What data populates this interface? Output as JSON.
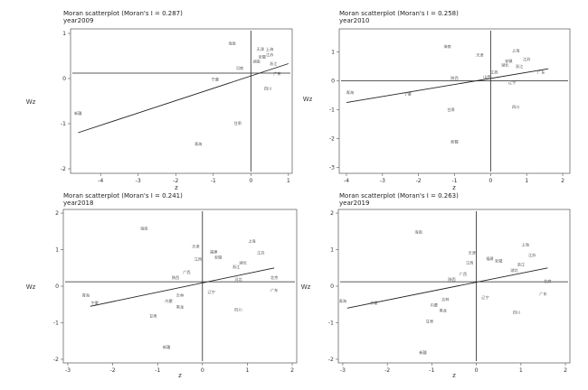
{
  "chart_data": [
    {
      "type": "scatter",
      "title": "Moran scatterplot (Moran's I = 0.287)",
      "subtitle": "year2009",
      "xlabel": "z",
      "ylabel": "Wz",
      "xlim": [
        -4.8,
        1.1
      ],
      "ylim": [
        -2.1,
        1.1
      ],
      "xticks": [
        -4,
        -3,
        -2,
        -1,
        0,
        1
      ],
      "yticks": [
        -2,
        -1,
        0,
        1
      ],
      "ref_x": 0,
      "ref_y": 0.12,
      "fit": {
        "x": [
          -4.6,
          1.0
        ],
        "y": [
          -1.2,
          0.33
        ]
      },
      "points": [
        {
          "label": "海南",
          "x": -0.5,
          "y": 0.75
        },
        {
          "label": "天津",
          "x": 0.25,
          "y": 0.62
        },
        {
          "label": "上海",
          "x": 0.5,
          "y": 0.62
        },
        {
          "label": "江苏",
          "x": 0.5,
          "y": 0.5
        },
        {
          "label": "安徽",
          "x": 0.3,
          "y": 0.45
        },
        {
          "label": "湖南",
          "x": 0.15,
          "y": 0.35
        },
        {
          "label": "浙江",
          "x": 0.6,
          "y": 0.3
        },
        {
          "label": "广东",
          "x": 0.7,
          "y": 0.08
        },
        {
          "label": "河南",
          "x": -0.3,
          "y": 0.2
        },
        {
          "label": "宁夏",
          "x": -0.95,
          "y": -0.05
        },
        {
          "label": "四川",
          "x": 0.45,
          "y": -0.25
        },
        {
          "label": "新疆",
          "x": -4.6,
          "y": -0.8
        },
        {
          "label": "甘肃",
          "x": -0.35,
          "y": -1.02
        },
        {
          "label": "青海",
          "x": -1.4,
          "y": -1.48
        }
      ]
    },
    {
      "type": "scatter",
      "title": "Moran scatterplot (Moran's I = 0.258)",
      "subtitle": "year2010",
      "xlabel": "z",
      "ylabel": "Wz",
      "xlim": [
        -4.2,
        2.2
      ],
      "ylim": [
        -3.2,
        1.8
      ],
      "xticks": [
        -4,
        -3,
        -2,
        -1,
        0,
        1,
        2
      ],
      "yticks": [
        -3,
        -2,
        -1,
        0,
        1
      ],
      "ref_x": 0,
      "ref_y": 0,
      "fit": {
        "x": [
          -4.0,
          1.6
        ],
        "y": [
          -0.75,
          0.42
        ]
      },
      "points": [
        {
          "label": "海南",
          "x": -1.2,
          "y": 1.15
        },
        {
          "label": "上海",
          "x": 0.7,
          "y": 1.0
        },
        {
          "label": "天津",
          "x": -0.3,
          "y": 0.85
        },
        {
          "label": "江苏",
          "x": 1.0,
          "y": 0.7
        },
        {
          "label": "安徽",
          "x": 0.5,
          "y": 0.65
        },
        {
          "label": "浙江",
          "x": 0.8,
          "y": 0.45
        },
        {
          "label": "广东",
          "x": 1.4,
          "y": 0.25
        },
        {
          "label": "江西",
          "x": 0.1,
          "y": 0.25
        },
        {
          "label": "辽宁",
          "x": 0.6,
          "y": -0.1
        },
        {
          "label": "湖北",
          "x": 0.4,
          "y": 0.5
        },
        {
          "label": "山西",
          "x": -0.1,
          "y": 0.1
        },
        {
          "label": "陕西",
          "x": -1.0,
          "y": 0.05
        },
        {
          "label": "青海",
          "x": -3.9,
          "y": -0.45
        },
        {
          "label": "宁夏",
          "x": -2.3,
          "y": -0.5
        },
        {
          "label": "四川",
          "x": 0.7,
          "y": -0.95
        },
        {
          "label": "甘肃",
          "x": -1.1,
          "y": -1.05
        },
        {
          "label": "新疆",
          "x": -1.0,
          "y": -2.15
        }
      ]
    },
    {
      "type": "scatter",
      "title": "Moran scatterplot (Moran's I = 0.241)",
      "subtitle": "year2018",
      "xlabel": "z",
      "ylabel": "Wz",
      "xlim": [
        -3.1,
        2.1
      ],
      "ylim": [
        -2.1,
        2.1
      ],
      "xticks": [
        -3,
        -2,
        -1,
        0,
        1,
        2
      ],
      "yticks": [
        -2,
        -1,
        0,
        1,
        2
      ],
      "ref_x": 0,
      "ref_y": 0.12,
      "fit": {
        "x": [
          -2.5,
          1.6
        ],
        "y": [
          -0.55,
          0.5
        ]
      },
      "points": [
        {
          "label": "海南",
          "x": -1.3,
          "y": 1.55
        },
        {
          "label": "上海",
          "x": 1.1,
          "y": 1.2
        },
        {
          "label": "天津",
          "x": -0.15,
          "y": 1.05
        },
        {
          "label": "福建",
          "x": 0.25,
          "y": 0.9
        },
        {
          "label": "江苏",
          "x": 1.3,
          "y": 0.88
        },
        {
          "label": "安徽",
          "x": 0.35,
          "y": 0.75
        },
        {
          "label": "江西",
          "x": -0.1,
          "y": 0.7
        },
        {
          "label": "湖北",
          "x": 0.9,
          "y": 0.6
        },
        {
          "label": "浙江",
          "x": 0.75,
          "y": 0.5
        },
        {
          "label": "广西",
          "x": -0.35,
          "y": 0.35
        },
        {
          "label": "陕西",
          "x": -0.6,
          "y": 0.2
        },
        {
          "label": "河北",
          "x": 0.8,
          "y": 0.15
        },
        {
          "label": "北京",
          "x": 1.6,
          "y": 0.2
        },
        {
          "label": "广东",
          "x": 1.6,
          "y": -0.15
        },
        {
          "label": "辽宁",
          "x": 0.2,
          "y": -0.2
        },
        {
          "label": "吉林",
          "x": -0.5,
          "y": -0.28
        },
        {
          "label": "内蒙",
          "x": -0.75,
          "y": -0.45
        },
        {
          "label": "黑龙",
          "x": -0.5,
          "y": -0.6
        },
        {
          "label": "四川",
          "x": 0.8,
          "y": -0.68
        },
        {
          "label": "青海",
          "x": -2.6,
          "y": -0.28
        },
        {
          "label": "宁夏",
          "x": -2.4,
          "y": -0.5
        },
        {
          "label": "甘肃",
          "x": -1.1,
          "y": -0.85
        },
        {
          "label": "新疆",
          "x": -0.8,
          "y": -1.7
        }
      ]
    },
    {
      "type": "scatter",
      "title": "Moran scatterplot (Moran's I = 0.263)",
      "subtitle": "year2019",
      "xlabel": "z",
      "ylabel": "Wz",
      "xlim": [
        -3.1,
        2.1
      ],
      "ylim": [
        -2.1,
        2.1
      ],
      "xticks": [
        -3,
        -2,
        -1,
        0,
        1,
        2
      ],
      "yticks": [
        -2,
        -1,
        0,
        1,
        2
      ],
      "ref_x": 0,
      "ref_y": 0.12,
      "fit": {
        "x": [
          -2.9,
          1.6
        ],
        "y": [
          -0.6,
          0.5
        ]
      },
      "points": [
        {
          "label": "海南",
          "x": -1.3,
          "y": 1.45
        },
        {
          "label": "上海",
          "x": 1.1,
          "y": 1.1
        },
        {
          "label": "天津",
          "x": -0.1,
          "y": 0.88
        },
        {
          "label": "江苏",
          "x": 1.25,
          "y": 0.82
        },
        {
          "label": "福建",
          "x": 0.3,
          "y": 0.72
        },
        {
          "label": "安徽",
          "x": 0.5,
          "y": 0.65
        },
        {
          "label": "江西",
          "x": -0.15,
          "y": 0.6
        },
        {
          "label": "浙江",
          "x": 1.0,
          "y": 0.55
        },
        {
          "label": "广西",
          "x": -0.3,
          "y": 0.3
        },
        {
          "label": "湖北",
          "x": 0.85,
          "y": 0.4
        },
        {
          "label": "陕西",
          "x": -0.55,
          "y": 0.15
        },
        {
          "label": "北京",
          "x": 1.6,
          "y": 0.1
        },
        {
          "label": "广东",
          "x": 1.5,
          "y": -0.25
        },
        {
          "label": "吉林",
          "x": -0.7,
          "y": -0.4
        },
        {
          "label": "辽宁",
          "x": 0.2,
          "y": -0.35
        },
        {
          "label": "内蒙",
          "x": -0.95,
          "y": -0.55
        },
        {
          "label": "黑龙",
          "x": -0.75,
          "y": -0.7
        },
        {
          "label": "四川",
          "x": 0.9,
          "y": -0.75
        },
        {
          "label": "青海",
          "x": -3.0,
          "y": -0.45
        },
        {
          "label": "宁夏",
          "x": -2.3,
          "y": -0.5
        },
        {
          "label": "甘肃",
          "x": -1.05,
          "y": -1.0
        },
        {
          "label": "新疆",
          "x": -1.2,
          "y": -1.85
        }
      ]
    }
  ]
}
